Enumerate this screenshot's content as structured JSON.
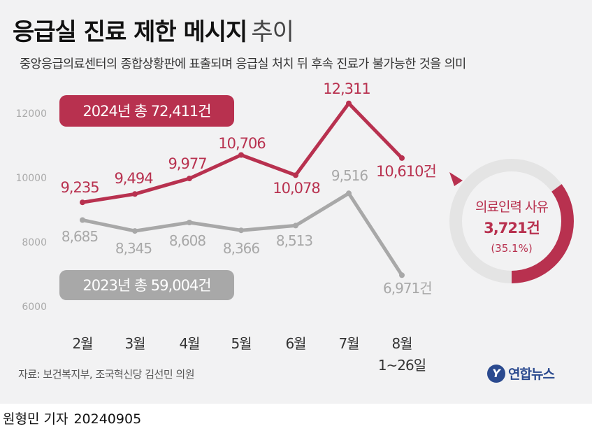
{
  "title": {
    "main": "응급실 진료 제한 메시지",
    "suffix": "추이"
  },
  "subtitle": "중앙응급의료센터의 종합상황판에 표출되며 응급실 처치 뒤 후속 진료가 불가능한 것을 의미",
  "source": "자료: 보건복지부, 조국혁신당 김선민 의원",
  "logo": {
    "mark": "Y",
    "name": "연합뉴스"
  },
  "byline": {
    "reporter": "원형민 기자",
    "date": "20240905"
  },
  "colors": {
    "series2024": "#b8314f",
    "series2023": "#a8a8a8",
    "donutRest": "#e4e4e4"
  },
  "chart_data": {
    "type": "line",
    "categories": [
      "2월",
      "3월",
      "4월",
      "5월",
      "6월",
      "7월",
      "8월"
    ],
    "category_sublabels": [
      "",
      "",
      "",
      "",
      "",
      "",
      "1~26일"
    ],
    "yticks": [
      6000,
      8000,
      10000,
      12000
    ],
    "ylim": [
      6000,
      12000
    ],
    "series": [
      {
        "name": "2024년",
        "badge": "2024년 총 72,411건",
        "values": [
          9235,
          9494,
          9977,
          10706,
          10078,
          12311,
          10610
        ],
        "labels": [
          "9,235",
          "9,494",
          "9,977",
          "10,706",
          "10,078",
          "12,311",
          "10,610건"
        ]
      },
      {
        "name": "2023년",
        "badge": "2023년 총 59,004건",
        "values": [
          8685,
          8345,
          8608,
          8366,
          8513,
          9516,
          6971
        ],
        "labels": [
          "8,685",
          "8,345",
          "8,608",
          "8,366",
          "8,513",
          "9,516",
          "6,971건"
        ]
      }
    ],
    "donut": {
      "label": "의료인력 사유",
      "count": "3,721건",
      "percent_text": "(35.1%)",
      "fraction": 0.351
    }
  }
}
